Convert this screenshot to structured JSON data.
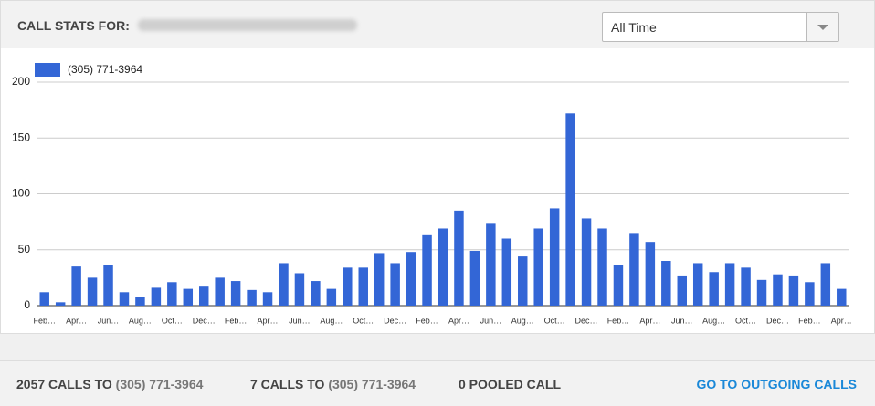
{
  "header": {
    "title": "CALL STATS FOR:",
    "dropdown": "All Time"
  },
  "chart_data": {
    "type": "bar",
    "series": [
      {
        "name": "(305) 771-3964",
        "color": "#3366d6",
        "values": [
          12,
          3,
          35,
          25,
          36,
          12,
          8,
          16,
          21,
          15,
          17,
          25,
          22,
          14,
          12,
          38,
          29,
          22,
          15,
          34,
          34,
          47,
          38,
          48,
          63,
          69,
          85,
          49,
          74,
          60,
          44,
          69,
          87,
          172,
          78,
          69,
          36,
          65,
          57,
          40,
          27,
          38,
          30,
          38,
          34,
          23,
          28,
          27,
          21,
          38,
          15
        ]
      }
    ],
    "categories": [
      "Feb…",
      null,
      "Apr…",
      null,
      "Jun…",
      null,
      "Aug…",
      null,
      "Oct…",
      null,
      "Dec…",
      null,
      "Feb…",
      null,
      "Apr…",
      null,
      "Jun…",
      null,
      "Aug…",
      null,
      "Oct…",
      null,
      "Dec…",
      null,
      "Feb…",
      null,
      "Apr…",
      null,
      "Jun…",
      null,
      "Aug…",
      null,
      "Oct…",
      null,
      "Dec…",
      null,
      "Feb…",
      null,
      "Apr…",
      null,
      "Jun…",
      null,
      "Aug…",
      null,
      "Oct…",
      null,
      "Dec…",
      null,
      "Feb…",
      null,
      "Apr…"
    ],
    "ylim": [
      0,
      200
    ],
    "yticks": [
      0,
      50,
      100,
      150,
      200
    ],
    "grid": true,
    "legend": "top-left"
  },
  "footer": {
    "stats": [
      {
        "count": "2057 CALLS TO",
        "number": "(305) 771-3964"
      },
      {
        "count": "7 CALLS TO",
        "number": "(305) 771-3964"
      },
      {
        "count": "0 POOLED CALL"
      }
    ],
    "link": "GO TO OUTGOING CALLS"
  }
}
